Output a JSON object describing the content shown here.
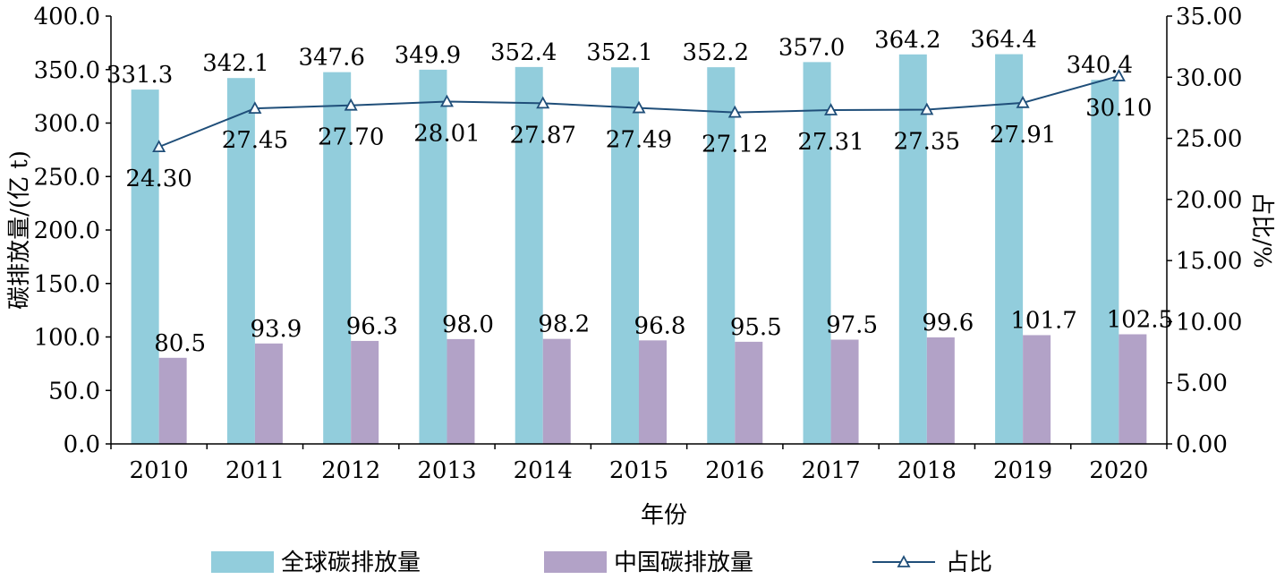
{
  "chart_data": {
    "type": "bar",
    "categories": [
      "2010",
      "2011",
      "2012",
      "2013",
      "2014",
      "2015",
      "2016",
      "2017",
      "2018",
      "2019",
      "2020"
    ],
    "series": [
      {
        "name": "全球碳排放量",
        "type": "bar",
        "axis": "left",
        "color": "#92CDDC",
        "values": [
          331.3,
          342.1,
          347.6,
          349.9,
          352.4,
          352.1,
          352.2,
          357.0,
          364.2,
          364.4,
          340.4
        ],
        "labels": [
          "331.3",
          "342.1",
          "347.6",
          "349.9",
          "352.4",
          "352.1",
          "352.2",
          "357.0",
          "364.2",
          "364.4",
          "340.4"
        ]
      },
      {
        "name": "中国碳排放量",
        "type": "bar",
        "axis": "left",
        "color": "#B2A2C7",
        "values": [
          80.5,
          93.9,
          96.3,
          98.0,
          98.2,
          96.8,
          95.5,
          97.5,
          99.6,
          101.7,
          102.5
        ],
        "labels": [
          "80.5",
          "93.9",
          "96.3",
          "98.0",
          "98.2",
          "96.8",
          "95.5",
          "97.5",
          "99.6",
          "101.7",
          "102.5"
        ]
      },
      {
        "name": "占比",
        "type": "line",
        "axis": "right",
        "color": "#1F4E79",
        "marker": "triangle",
        "values": [
          24.3,
          27.45,
          27.7,
          28.01,
          27.87,
          27.49,
          27.12,
          27.31,
          27.35,
          27.91,
          30.1
        ],
        "labels": [
          "24.30",
          "27.45",
          "27.70",
          "28.01",
          "27.87",
          "27.49",
          "27.12",
          "27.31",
          "27.35",
          "27.91",
          "30.10"
        ]
      }
    ],
    "xlabel": "年份",
    "ylabel": "碳排放量/(亿 t)",
    "y2label": "占比/%",
    "ylim": [
      0,
      400
    ],
    "y2lim": [
      0,
      35
    ],
    "yticks": [
      "0.0",
      "50.0",
      "100.0",
      "150.0",
      "200.0",
      "250.0",
      "300.0",
      "350.0",
      "400.0"
    ],
    "y2ticks": [
      "0.00",
      "5.00",
      "10.00",
      "15.00",
      "20.00",
      "25.00",
      "30.00",
      "35.00"
    ],
    "legend_position": "bottom",
    "grid": false
  }
}
